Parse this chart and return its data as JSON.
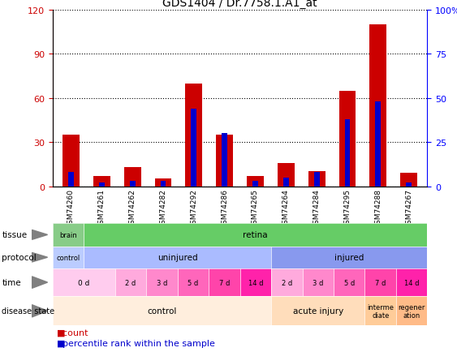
{
  "title": "GDS1404 / Dr.7758.1.A1_at",
  "samples": [
    "GSM74260",
    "GSM74261",
    "GSM74262",
    "GSM74282",
    "GSM74292",
    "GSM74286",
    "GSM74265",
    "GSM74264",
    "GSM74284",
    "GSM74295",
    "GSM74288",
    "GSM74267"
  ],
  "count_values": [
    35,
    7,
    13,
    5,
    70,
    35,
    7,
    16,
    10,
    65,
    110,
    9
  ],
  "percentile_values": [
    8,
    2,
    3,
    3,
    44,
    30,
    3,
    5,
    8,
    38,
    48,
    2
  ],
  "ylim_left": [
    0,
    120
  ],
  "ylim_right": [
    0,
    100
  ],
  "yticks_left": [
    0,
    30,
    60,
    90,
    120
  ],
  "yticks_right": [
    0,
    25,
    50,
    75,
    100
  ],
  "bar_color_count": "#cc0000",
  "bar_color_pct": "#0000cc",
  "tissue_row": {
    "label": "tissue",
    "segments": [
      {
        "text": "brain",
        "start": 0,
        "end": 1,
        "color": "#88cc88"
      },
      {
        "text": "retina",
        "start": 1,
        "end": 12,
        "color": "#66cc66"
      }
    ]
  },
  "protocol_row": {
    "label": "protocol",
    "segments": [
      {
        "text": "control",
        "start": 0,
        "end": 1,
        "color": "#bbccff"
      },
      {
        "text": "uninjured",
        "start": 1,
        "end": 7,
        "color": "#aabbff"
      },
      {
        "text": "injured",
        "start": 7,
        "end": 12,
        "color": "#8899ee"
      }
    ]
  },
  "time_row": {
    "label": "time",
    "segments": [
      {
        "text": "0 d",
        "start": 0,
        "end": 2,
        "color": "#ffccee"
      },
      {
        "text": "2 d",
        "start": 2,
        "end": 3,
        "color": "#ffaadd"
      },
      {
        "text": "3 d",
        "start": 3,
        "end": 4,
        "color": "#ff88cc"
      },
      {
        "text": "5 d",
        "start": 4,
        "end": 5,
        "color": "#ff66bb"
      },
      {
        "text": "7 d",
        "start": 5,
        "end": 6,
        "color": "#ff44aa"
      },
      {
        "text": "14 d",
        "start": 6,
        "end": 7,
        "color": "#ff22aa"
      },
      {
        "text": "2 d",
        "start": 7,
        "end": 8,
        "color": "#ffaadd"
      },
      {
        "text": "3 d",
        "start": 8,
        "end": 9,
        "color": "#ff88cc"
      },
      {
        "text": "5 d",
        "start": 9,
        "end": 10,
        "color": "#ff66bb"
      },
      {
        "text": "7 d",
        "start": 10,
        "end": 11,
        "color": "#ff44aa"
      },
      {
        "text": "14 d",
        "start": 11,
        "end": 12,
        "color": "#ff22aa"
      }
    ]
  },
  "disease_row": {
    "label": "disease state",
    "segments": [
      {
        "text": "control",
        "start": 0,
        "end": 7,
        "color": "#ffeedd"
      },
      {
        "text": "acute injury",
        "start": 7,
        "end": 10,
        "color": "#ffddbb"
      },
      {
        "text": "interme\ndiate",
        "start": 10,
        "end": 11,
        "color": "#ffcc99"
      },
      {
        "text": "regener\nation",
        "start": 11,
        "end": 12,
        "color": "#ffbb88"
      }
    ]
  }
}
